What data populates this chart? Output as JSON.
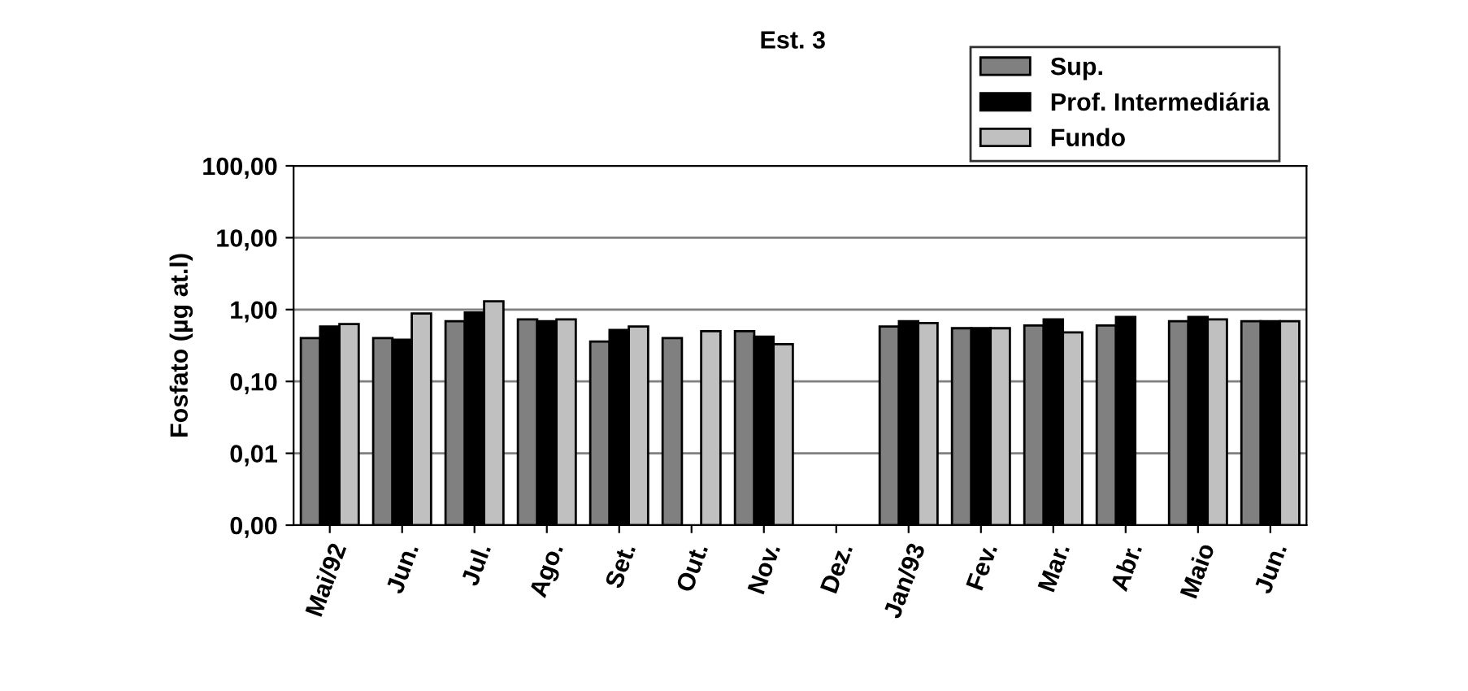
{
  "chart_data": {
    "type": "bar",
    "title": "Est. 3",
    "ylabel": "Fosfato (µg at.l)",
    "categories": [
      "Mai/92",
      "Jun.",
      "Jul.",
      "Ago.",
      "Set.",
      "Out.",
      "Nov.",
      "Dez.",
      "Jan/93",
      "Fev.",
      "Mar.",
      "Abr.",
      "Maio",
      "Jun."
    ],
    "series": [
      {
        "name": "Sup.",
        "color": "#808080",
        "values": [
          0.4,
          0.4,
          0.69,
          0.73,
          0.36,
          0.4,
          0.5,
          null,
          0.58,
          0.55,
          0.6,
          0.6,
          0.69,
          0.69
        ]
      },
      {
        "name": "Prof. Intermediária",
        "color": "#000000",
        "values": [
          0.58,
          0.38,
          0.91,
          0.69,
          0.52,
          null,
          0.42,
          null,
          0.69,
          0.55,
          0.73,
          0.79,
          0.79,
          0.69
        ]
      },
      {
        "name": "Fundo",
        "color": "#c0c0c0",
        "values": [
          0.63,
          0.88,
          1.3,
          0.73,
          0.58,
          0.5,
          0.33,
          null,
          0.65,
          0.55,
          0.48,
          null,
          0.73,
          0.69
        ]
      }
    ],
    "log": "y",
    "ylim": [
      0.001,
      100
    ],
    "yticks": [
      {
        "value": 0.001,
        "label": "0,00"
      },
      {
        "value": 0.01,
        "label": "0,01"
      },
      {
        "value": 0.1,
        "label": "0,10"
      },
      {
        "value": 1,
        "label": "1,00"
      },
      {
        "value": 10,
        "label": "10,00"
      },
      {
        "value": 100,
        "label": "100,00"
      }
    ],
    "grid": "y",
    "legend": "top right"
  }
}
